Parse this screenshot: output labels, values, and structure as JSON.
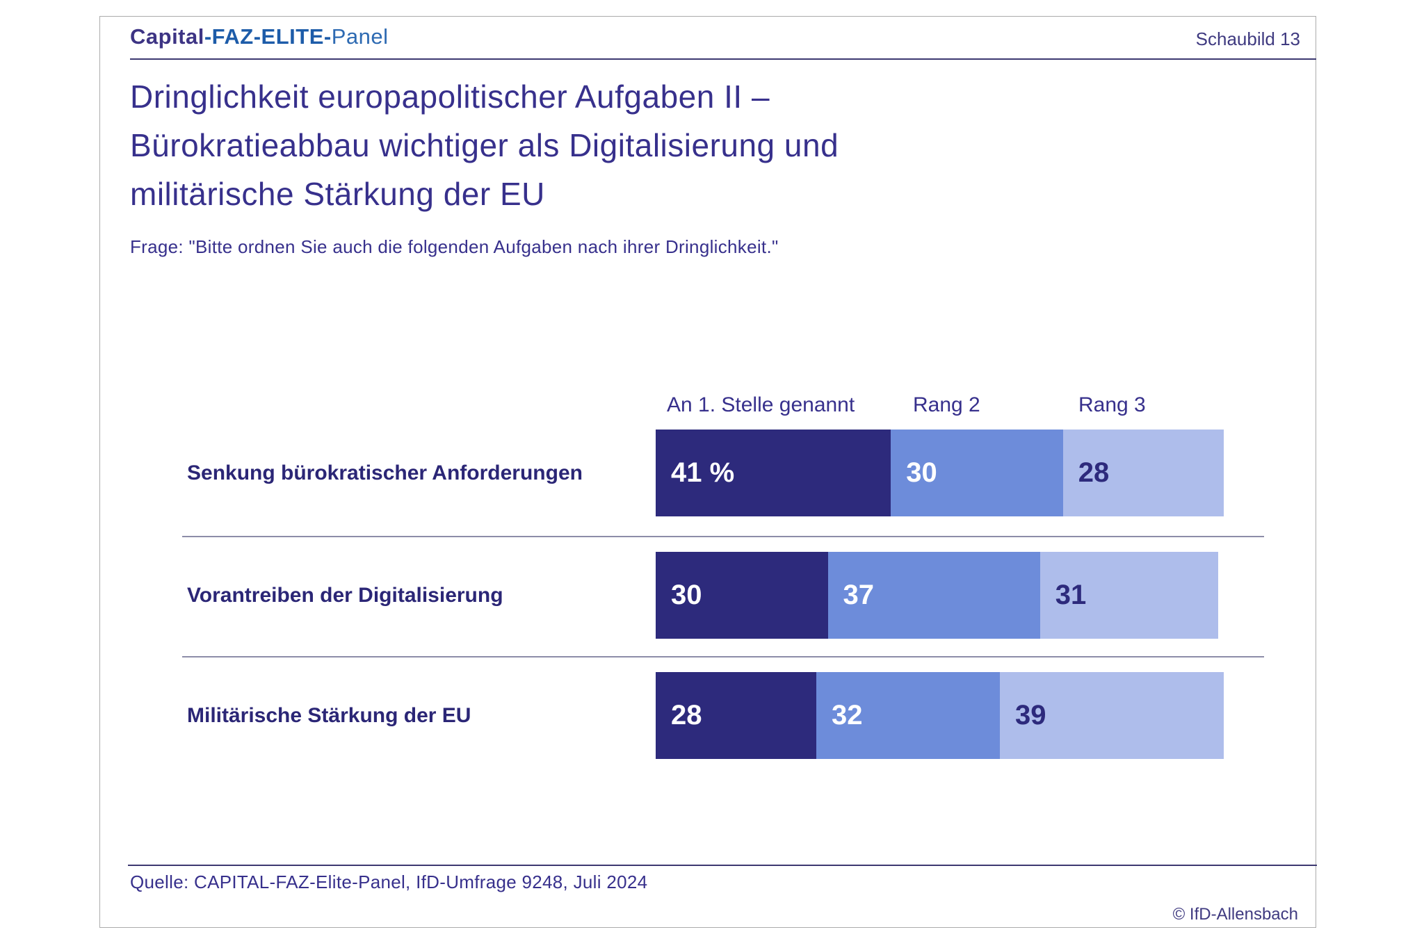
{
  "page": {
    "logo": {
      "part1": "Capital",
      "part2": "-FAZ-ELITE-",
      "part3": "Panel"
    },
    "schaubild": "Schaubild 13",
    "source": "Quelle: CAPITAL-FAZ-Elite-Panel, IfD-Umfrage 9248, Juli 2024",
    "copyright": "© IfD-Allensbach"
  },
  "chart_data": {
    "type": "bar",
    "stacked": true,
    "orientation": "horizontal",
    "title": "Dringlichkeit europapolitischer Aufgaben II –\nBürokratieabbau wichtiger als Digitalisierung und\nmilitärische Stärkung der EU",
    "question": "Frage: \"Bitte ordnen Sie auch die folgenden Aufgaben nach ihrer Dringlichkeit.\"",
    "unit": "%",
    "xlim": [
      0,
      100
    ],
    "categories": [
      "Senkung bürokratischer Anforderungen",
      "Vorantreiben der Digitalisierung",
      "Militärische Stärkung der EU"
    ],
    "series": [
      {
        "name": "An 1. Stelle genannt",
        "values": [
          41,
          30,
          28
        ]
      },
      {
        "name": "Rang 2",
        "values": [
          30,
          37,
          32
        ]
      },
      {
        "name": "Rang 3",
        "values": [
          28,
          31,
          39
        ]
      }
    ],
    "rows": [
      {
        "values": [
          41,
          30,
          28
        ],
        "labels": [
          "41 %",
          "30",
          "28"
        ]
      },
      {
        "values": [
          30,
          37,
          31
        ],
        "labels": [
          "30",
          "37",
          "31"
        ]
      },
      {
        "values": [
          28,
          32,
          39
        ],
        "labels": [
          "28",
          "32",
          "39"
        ]
      }
    ],
    "colors": {
      "rank1": "#2d2a7c",
      "rank2": "#6d8cda",
      "rank3": "#aebdeb",
      "value_on_dark": "#ffffff",
      "value_on_light": "#2d2a7c",
      "text_navy": "#37308c"
    },
    "legend_position": "top-as-column-headers",
    "grid": false
  }
}
